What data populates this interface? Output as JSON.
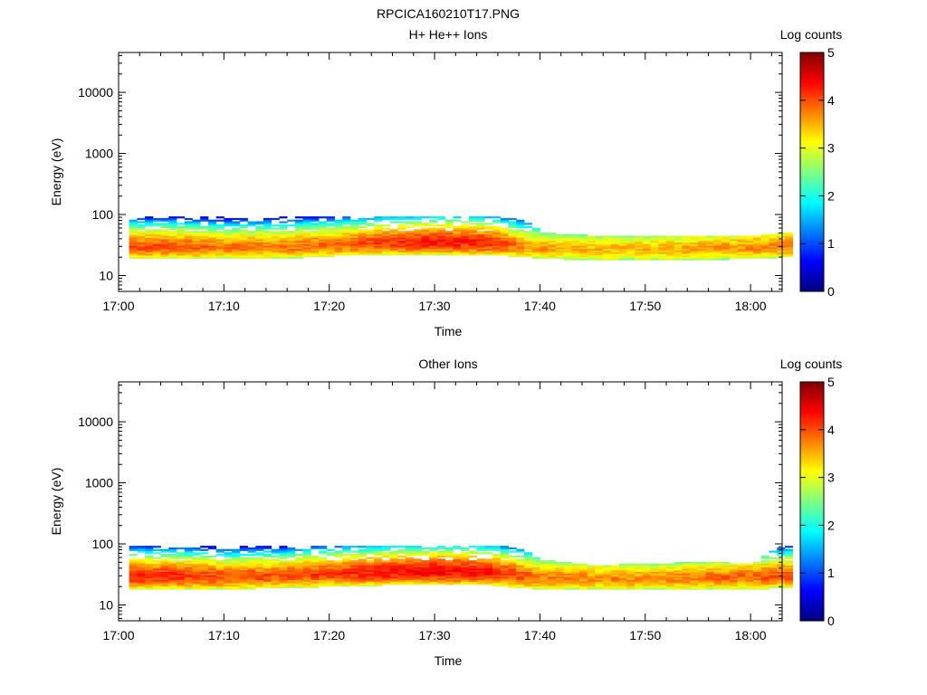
{
  "figure_title": "RPCICA160210T17.PNG",
  "chart_data": [
    {
      "type": "heatmap",
      "title": "H+ He++ Ions",
      "xlabel": "Time",
      "ylabel": "Energy (eV)",
      "y_scale": "log",
      "x_range": [
        "17:00",
        "18:03"
      ],
      "ylim": [
        5.5,
        45000
      ],
      "x_ticks": [
        "17:00",
        "17:10",
        "17:20",
        "17:30",
        "17:40",
        "17:50",
        "18:00"
      ],
      "y_ticks": [
        {
          "value": 10,
          "label": "10"
        },
        {
          "value": 100,
          "label": "100"
        },
        {
          "value": 1000,
          "label": "1000"
        },
        {
          "value": 10000,
          "label": "10000"
        }
      ],
      "grid": false,
      "colorbar": {
        "label": "Log counts",
        "min": 0,
        "max": 5,
        "ticks": [
          "0",
          "1",
          "2",
          "3",
          "4",
          "5"
        ],
        "colormap": "jet"
      },
      "energy_band": {
        "description_of_times": "minutes after 17:00",
        "times": [
          1,
          5,
          10,
          15,
          20,
          25,
          30,
          35,
          38,
          40,
          45,
          50,
          55,
          60,
          63
        ],
        "low_eV": [
          19,
          19,
          19,
          19,
          21,
          22,
          22,
          22,
          20,
          19,
          18,
          18,
          18,
          19,
          20
        ],
        "peak_eV": [
          31,
          31,
          30,
          31,
          33,
          36,
          37,
          36,
          31,
          29,
          28,
          28,
          29,
          30,
          32
        ],
        "high_eV": [
          95,
          95,
          90,
          90,
          95,
          95,
          95,
          95,
          80,
          50,
          45,
          45,
          45,
          45,
          50
        ],
        "peak_log_counts": [
          4.0,
          4.0,
          3.8,
          3.8,
          3.9,
          4.1,
          4.3,
          4.2,
          3.7,
          3.6,
          3.5,
          3.5,
          3.6,
          3.7,
          3.8
        ]
      }
    },
    {
      "type": "heatmap",
      "title": "Other Ions",
      "xlabel": "Time",
      "ylabel": "Energy (eV)",
      "y_scale": "log",
      "x_range": [
        "17:00",
        "18:03"
      ],
      "ylim": [
        5.5,
        45000
      ],
      "x_ticks": [
        "17:00",
        "17:10",
        "17:20",
        "17:30",
        "17:40",
        "17:50",
        "18:00"
      ],
      "y_ticks": [
        {
          "value": 10,
          "label": "10"
        },
        {
          "value": 100,
          "label": "100"
        },
        {
          "value": 1000,
          "label": "1000"
        },
        {
          "value": 10000,
          "label": "10000"
        }
      ],
      "grid": false,
      "colorbar": {
        "label": "Log counts",
        "min": 0,
        "max": 5,
        "ticks": [
          "0",
          "1",
          "2",
          "3",
          "4",
          "5"
        ],
        "colormap": "jet"
      },
      "energy_band": {
        "description_of_times": "minutes after 17:00",
        "times": [
          1,
          5,
          10,
          15,
          20,
          25,
          30,
          35,
          38,
          40,
          45,
          50,
          55,
          60,
          63
        ],
        "low_eV": [
          18,
          18,
          18,
          19,
          20,
          21,
          21,
          21,
          19,
          18,
          18,
          18,
          18,
          18,
          19
        ],
        "peak_eV": [
          31,
          31,
          30,
          31,
          34,
          36,
          37,
          36,
          31,
          29,
          28,
          28,
          29,
          30,
          32
        ],
        "high_eV": [
          95,
          95,
          90,
          95,
          95,
          95,
          95,
          95,
          85,
          55,
          45,
          48,
          50,
          48,
          95
        ],
        "peak_log_counts": [
          4.2,
          4.2,
          4.0,
          4.0,
          4.1,
          4.3,
          4.4,
          4.3,
          4.0,
          3.8,
          3.7,
          3.7,
          3.8,
          3.9,
          4.0
        ]
      }
    }
  ]
}
